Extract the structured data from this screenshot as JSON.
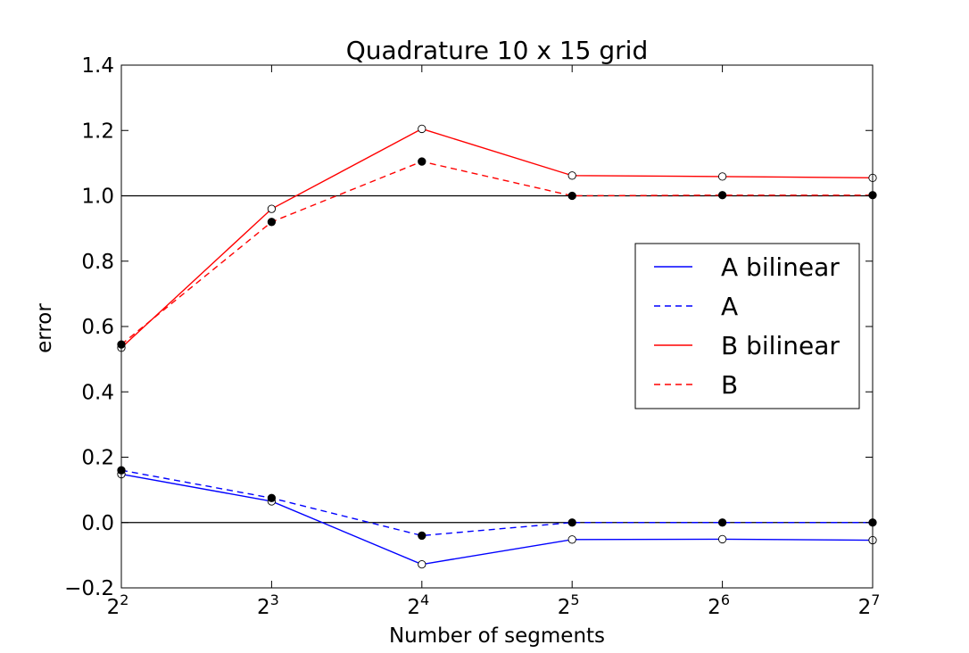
{
  "chart_data": {
    "type": "line",
    "title": "Quadrature 10 x 15 grid",
    "xlabel": "Number of segments",
    "ylabel": "error",
    "x": [
      4,
      8,
      16,
      32,
      64,
      128
    ],
    "x_tick_labels": [
      {
        "base": "2",
        "exp": "2"
      },
      {
        "base": "2",
        "exp": "3"
      },
      {
        "base": "2",
        "exp": "4"
      },
      {
        "base": "2",
        "exp": "5"
      },
      {
        "base": "2",
        "exp": "6"
      },
      {
        "base": "2",
        "exp": "7"
      }
    ],
    "x_scale": "log2",
    "xlim": [
      4,
      128
    ],
    "ylim": [
      -0.2,
      1.4
    ],
    "y_ticks": [
      -0.2,
      0.0,
      0.2,
      0.4,
      0.6,
      0.8,
      1.0,
      1.2,
      1.4
    ],
    "y_tick_labels": [
      "−0.2",
      "0.0",
      "0.2",
      "0.4",
      "0.6",
      "0.8",
      "1.0",
      "1.2",
      "1.4"
    ],
    "reference_lines": [
      0.0,
      1.0
    ],
    "grid": false,
    "legend_position": "center-right",
    "series": [
      {
        "name": "A bilinear",
        "color": "#0000ff",
        "linestyle": "solid",
        "marker": "open-circle",
        "values": [
          0.148,
          0.065,
          -0.128,
          -0.052,
          -0.051,
          -0.054
        ]
      },
      {
        "name": "A",
        "color": "#0000ff",
        "linestyle": "dashed",
        "marker": "filled-circle",
        "values": [
          0.16,
          0.075,
          -0.04,
          0.0,
          0.0,
          0.0
        ]
      },
      {
        "name": "B bilinear",
        "color": "#ff0000",
        "linestyle": "solid",
        "marker": "open-circle",
        "values": [
          0.535,
          0.96,
          1.205,
          1.062,
          1.059,
          1.055
        ]
      },
      {
        "name": "B",
        "color": "#ff0000",
        "linestyle": "dashed",
        "marker": "filled-circle",
        "values": [
          0.545,
          0.92,
          1.105,
          1.0,
          1.002,
          1.002
        ]
      }
    ]
  }
}
